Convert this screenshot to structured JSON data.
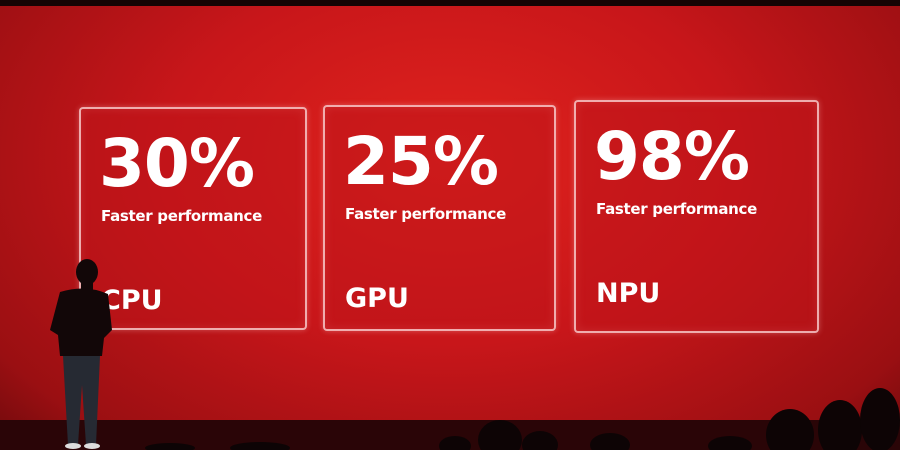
{
  "cards": [
    {
      "value": "30%",
      "caption": "Faster performance",
      "chip": "CPU"
    },
    {
      "value": "25%",
      "caption": "Faster performance",
      "chip": "GPU"
    },
    {
      "value": "98%",
      "caption": "Faster performance",
      "chip": "NPU"
    }
  ]
}
